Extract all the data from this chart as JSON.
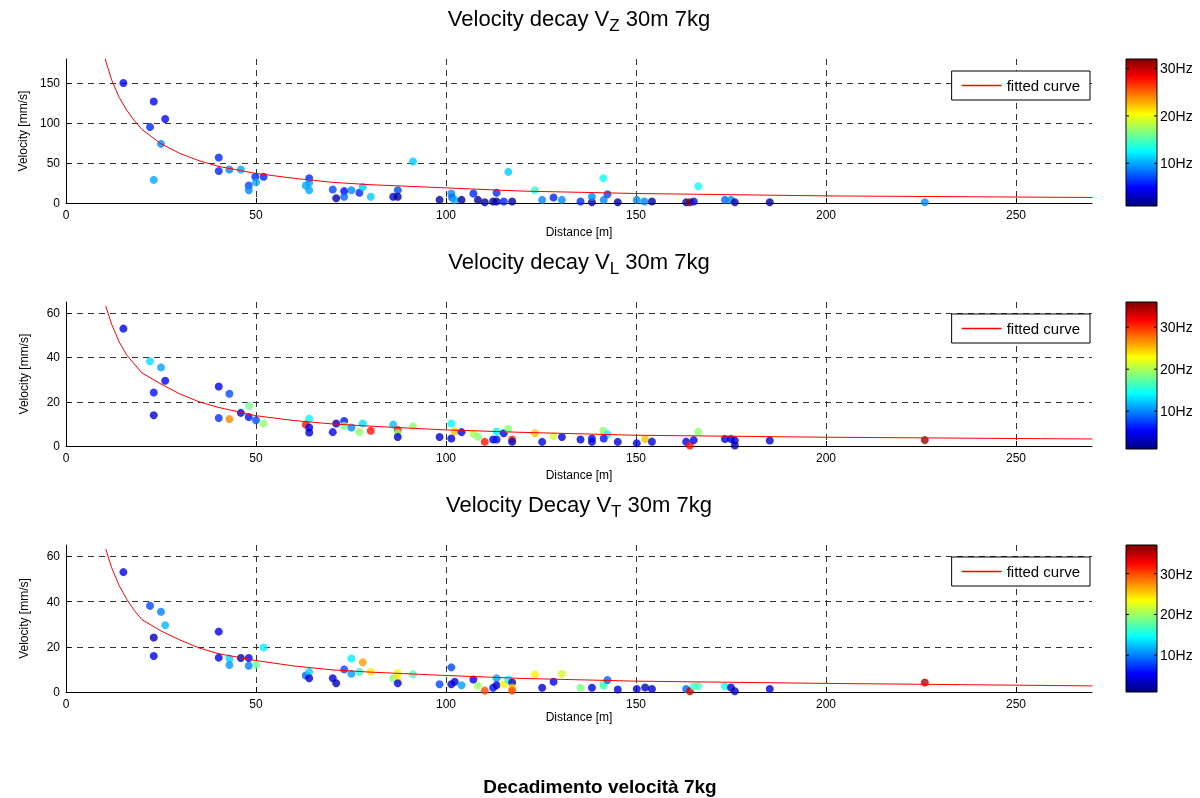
{
  "chart_data": [
    {
      "type": "scatter",
      "title": "Velocity decay V$_{Z}$ 30m 7kg",
      "xlabel": "Distance [m]",
      "ylabel": "Velocity [mm/s]",
      "xlim": [
        0,
        270
      ],
      "xticks": [
        0,
        50,
        100,
        150,
        200,
        250
      ],
      "ylim": [
        0,
        180
      ],
      "yticks": [
        0,
        50,
        100,
        150
      ],
      "grid": true,
      "legend": "top right",
      "clim": [
        1,
        32
      ],
      "cticks": [
        {
          "value": 10,
          "label": "10Hz"
        },
        {
          "value": 20,
          "label": "20Hz"
        },
        {
          "value": 30,
          "label": "30Hz"
        }
      ],
      "series": [
        {
          "type": "scatter",
          "marker": "circle",
          "x": [
            15.1,
            23.1,
            22.1,
            26.1,
            25,
            23.1,
            40.2,
            40.2,
            43,
            46,
            49.8,
            52,
            48.1,
            48.1,
            50,
            64,
            63.1,
            64,
            64,
            70.2,
            71.1,
            73.2,
            73.2,
            75.1,
            77.2,
            78.1,
            80.2,
            86.1,
            87.3,
            87.3,
            91.3,
            98.3,
            101.4,
            101.6,
            102.3,
            104.1,
            107.2,
            108.4,
            110.2,
            112.4,
            113.3,
            113.3,
            115.2,
            116.4,
            117.4,
            123.4,
            125.3,
            128.3,
            130.5,
            135.4,
            138.4,
            138.4,
            141.5,
            141.4,
            142.5,
            145.2,
            150.2,
            152.2,
            154.2,
            163.2,
            164.2,
            165.2,
            166.4,
            173.4,
            175,
            176,
            185.2,
            226
          ],
          "values": [
            150,
            127,
            95,
            105,
            74,
            29,
            57,
            40,
            42,
            42,
            33,
            33,
            22,
            16,
            26,
            31,
            22,
            25,
            16,
            17,
            6,
            15,
            8,
            16,
            13,
            20,
            8,
            8,
            16,
            8,
            52,
            4,
            12,
            7,
            4,
            4,
            12,
            4,
            1,
            2,
            13,
            2,
            2,
            39,
            2,
            16,
            4,
            7,
            4,
            2,
            1,
            8,
            4,
            31,
            11,
            1,
            4,
            2,
            2,
            1,
            1,
            2,
            21,
            4,
            4,
            1,
            1,
            1
          ],
          "colors": [
            "#0004ff",
            "#0004ff",
            "#0025ff",
            "#0004ff",
            "#0088ff",
            "#00a8ff",
            "#0025ff",
            "#0025ff",
            "#0088ff",
            "#00a8ff",
            "#0025ff",
            "#0025ff",
            "#0046ff",
            "#0088ff",
            "#00a8ff",
            "#0025ff",
            "#00a8ff",
            "#00a8ff",
            "#00a8ff",
            "#0046ff",
            "#0000a0",
            "#0004ff",
            "#0067ff",
            "#0088ff",
            "#0025ff",
            "#00c9ff",
            "#00c9ff",
            "#0000e2",
            "#0046ff",
            "#0000a0",
            "#00c9ff",
            "#0000a0",
            "#0088ff",
            "#0067ff",
            "#00a8ff",
            "#0000a0",
            "#0025ff",
            "#0000a0",
            "#0000a0",
            "#0000a0",
            "#0025ff",
            "#0000a0",
            "#0025ff",
            "#00c9ff",
            "#0000a0",
            "#2dffd2",
            "#0088ff",
            "#0025ff",
            "#0088ff",
            "#0025ff",
            "#0000a0",
            "#0088ff",
            "#0088ff",
            "#0cfff3",
            "#0046ff",
            "#0000a0",
            "#0088ff",
            "#0088ff",
            "#0000a0",
            "#0000a0",
            "#800000",
            "#0000e2",
            "#0cfff3",
            "#0067ff",
            "#0088ff",
            "#0000a0",
            "#0000a0",
            "#0088ff"
          ]
        },
        {
          "type": "line",
          "name": "fitted curve",
          "color": "#ff0000",
          "line_style": "solid",
          "marker": "none",
          "x": [
            10.3,
            12,
            14,
            16,
            18,
            20,
            25,
            30,
            35,
            40,
            50,
            60,
            70,
            80,
            100,
            120,
            150,
            200,
            270
          ],
          "values": [
            180,
            154,
            132,
            116,
            103,
            92,
            74,
            62,
            53,
            46,
            37,
            31,
            26,
            23,
            19,
            15,
            12,
            9,
            7
          ]
        }
      ]
    },
    {
      "type": "scatter",
      "title": "Velocity decay V$_{L}$ 30m 7kg",
      "xlabel": "Distance [m]",
      "ylabel": "Velocity [mm/s]",
      "xlim": [
        0,
        270
      ],
      "xticks": [
        0,
        50,
        100,
        150,
        200,
        250
      ],
      "ylim": [
        0,
        65
      ],
      "yticks": [
        0,
        20,
        40,
        60
      ],
      "grid": true,
      "legend": "top right",
      "clim": [
        1,
        36
      ],
      "cticks": [
        {
          "value": 10,
          "label": "10Hz"
        },
        {
          "value": 20,
          "label": "20Hz"
        },
        {
          "value": 30,
          "label": "30Hz"
        }
      ],
      "series": [
        {
          "type": "scatter",
          "marker": "circle",
          "x": [
            15.1,
            22.1,
            25,
            26.1,
            23.1,
            23.1,
            40.2,
            43,
            40.2,
            43,
            48.2,
            46,
            48.1,
            50,
            52,
            64,
            63.1,
            64,
            64,
            70.2,
            71.1,
            73.2,
            73.2,
            75.1,
            77.2,
            78.1,
            80.2,
            86.1,
            87.3,
            87.3,
            87.3,
            91.3,
            98.3,
            101.4,
            102.3,
            101.4,
            104.1,
            107.2,
            108.4,
            110.2,
            112.4,
            113.3,
            113.3,
            115.2,
            116.4,
            117.4,
            117.4,
            123.4,
            125.3,
            128.3,
            130.5,
            135.4,
            138.4,
            138.4,
            141.4,
            142.5,
            141.5,
            145.2,
            150.2,
            152.4,
            154.2,
            163.2,
            164.2,
            165.2,
            166.4,
            173.4,
            175,
            176,
            176,
            185.2,
            226
          ],
          "values": [
            53,
            38.3,
            35.5,
            29.5,
            24.2,
            13.9,
            26.9,
            23.6,
            12.7,
            12.2,
            18.1,
            15,
            13.1,
            11.7,
            10.2,
            12.3,
            9.7,
            8.4,
            6.1,
            6.3,
            10.2,
            11.3,
            9.2,
            8.4,
            6.3,
            10.2,
            6.9,
            9.7,
            7.3,
            5.8,
            4.1,
            8.9,
            4.1,
            10.2,
            6.6,
            3.4,
            6.3,
            5.5,
            4.2,
            1.9,
            3,
            3,
            6.6,
            5.8,
            7.7,
            3,
            1.9,
            5.8,
            1.9,
            4.5,
            4.1,
            3,
            3.4,
            1.9,
            6.9,
            5.3,
            3.4,
            1.9,
            1.3,
            3.2,
            2,
            2,
            0.3,
            2.7,
            6.5,
            3.2,
            3.2,
            2.5,
            0.3,
            2.5,
            2.7
          ],
          "colors": [
            "#0000f4",
            "#00deff",
            "#00a4ff",
            "#0000f4",
            "#0012ff",
            "#0000d7",
            "#0000f4",
            "#004cff",
            "#002fff",
            "#ff8700",
            "#71ff8e",
            "#0000d7",
            "#0012ff",
            "#004cff",
            "#8eff71",
            "#00fbff",
            "#ff1200",
            "#0000f4",
            "#0000d7",
            "#0000f4",
            "#0000ba",
            "#0012ff",
            "#71ff8e",
            "#0087ff",
            "#8eff71",
            "#00deff",
            "#ff1200",
            "#00c1ff",
            "#ff1200",
            "#8eff71",
            "#0000d7",
            "#8eff71",
            "#0000d7",
            "#00fbff",
            "#ffc100",
            "#0000d7",
            "#0000f4",
            "#abff54",
            "#8eff71",
            "#ff1200",
            "#0000d7",
            "#0012ff",
            "#00fbff",
            "#0000f4",
            "#8eff71",
            "#ff1200",
            "#0000d7",
            "#ffc100",
            "#0000d7",
            "#c8ff37",
            "#0000f4",
            "#0000d7",
            "#0000f4",
            "#0000d7",
            "#8eff71",
            "#00fbff",
            "#0012ff",
            "#0000d7",
            "#0000d7",
            "#ffc100",
            "#0000d7",
            "#0000d7",
            "#ff1200",
            "#0000f4",
            "#8eff71",
            "#0000d7",
            "#0000d7",
            "#0000d7",
            "#0000ba",
            "#0000d7",
            "#9d0000"
          ]
        },
        {
          "type": "line",
          "name": "fitted curve",
          "color": "#ff0000",
          "line_style": "solid",
          "marker": "none",
          "x": [
            10.5,
            12,
            14,
            16,
            18,
            20,
            25,
            30,
            35,
            40,
            50,
            60,
            70,
            80,
            100,
            120,
            150,
            200,
            270
          ],
          "values": [
            63,
            55,
            47,
            41,
            37,
            33,
            28,
            23.5,
            20,
            17.5,
            13.7,
            11.5,
            10,
            9,
            7.3,
            6.2,
            4.9,
            4,
            3.2
          ]
        }
      ]
    },
    {
      "type": "scatter",
      "title": "Velocity Decay V$_{T}$ 30m 7kg",
      "xlabel": "Distance [m]",
      "ylabel": "Velocity [mm/s]",
      "xlim": [
        0,
        270
      ],
      "xticks": [
        0,
        50,
        100,
        150,
        200,
        250
      ],
      "ylim": [
        0,
        65
      ],
      "yticks": [
        0,
        20,
        40,
        60
      ],
      "grid": true,
      "legend": "top right",
      "clim": [
        1,
        37
      ],
      "cticks": [
        {
          "value": 10,
          "label": "10Hz"
        },
        {
          "value": 20,
          "label": "20Hz"
        },
        {
          "value": 30,
          "label": "30Hz"
        }
      ],
      "annotations": [
        "Decadimento velocità 7kg"
      ],
      "series": [
        {
          "type": "scatter",
          "marker": "circle",
          "x": [
            15.1,
            22.1,
            25,
            26.1,
            23.1,
            23.1,
            40.2,
            40.2,
            43,
            43,
            46,
            48.1,
            48.1,
            50,
            52,
            63.1,
            64,
            64,
            70.2,
            71.1,
            73.2,
            75.1,
            75.1,
            78.1,
            77.2,
            80.2,
            86.1,
            87.3,
            87.3,
            87.3,
            91.3,
            98.3,
            101.4,
            101.4,
            102.3,
            104.1,
            107.2,
            108.4,
            110.2,
            112.4,
            113.3,
            113.3,
            115.2,
            116.4,
            117.4,
            117.4,
            117.4,
            123.4,
            125.3,
            128.3,
            130.5,
            135.4,
            138.4,
            141.5,
            141.5,
            142.5,
            145.2,
            150.2,
            152.4,
            154.2,
            163.2,
            164.2,
            165.2,
            166.4,
            173.4,
            175,
            176,
            185.2,
            226
          ],
          "values": [
            53,
            38.1,
            35.5,
            29.5,
            24.1,
            15.9,
            26.7,
            15.2,
            14.8,
            11.9,
            15,
            15,
            11.6,
            12,
            19.7,
            7.3,
            8.9,
            6.1,
            6.1,
            3.9,
            10,
            14.8,
            8.1,
            13.1,
            8.9,
            8.9,
            6.1,
            8.4,
            5.5,
            3.9,
            7.8,
            3.4,
            10.9,
            3.4,
            4.5,
            3,
            5.5,
            2.7,
            0.6,
            1.9,
            6.1,
            3,
            3.4,
            5.5,
            4.2,
            1.9,
            0.6,
            7.7,
            1.9,
            4.5,
            8.1,
            1.9,
            1.9,
            3.8,
            2.7,
            5.3,
            1.1,
            1.3,
            2,
            1.3,
            1.3,
            0.3,
            2.5,
            2.5,
            2.5,
            2,
            0.3,
            1.3,
            4.2
          ],
          "colors": [
            "#0000f1",
            "#0047ff",
            "#0080ff",
            "#00b8ff",
            "#0000b8",
            "#0000f1",
            "#0000f1",
            "#0000f1",
            "#00d4ff",
            "#009cff",
            "#0000b8",
            "#0000f1",
            "#0080ff",
            "#63ff9c",
            "#00f1ff",
            "#0063ff",
            "#00d4ff",
            "#0000d4",
            "#0000d4",
            "#0000b8",
            "#0047ff",
            "#00f1ff",
            "#009cff",
            "#ff9c00",
            "#2bffd4",
            "#fff100",
            "#80ff80",
            "#fff100",
            "#f1ff0e",
            "#0000f1",
            "#47ffb8",
            "#0047ff",
            "#0047ff",
            "#0000d4",
            "#0000d4",
            "#009cff",
            "#0000f1",
            "#9cff63",
            "#ff4700",
            "#000eff",
            "#009cff",
            "#0000d4",
            "#fff100",
            "#0efff1",
            "#0000b8",
            "#ffd400",
            "#ff4700",
            "#fff100",
            "#0000d4",
            "#0000f1",
            "#d4ff2b",
            "#80ff80",
            "#0000f1",
            "#63ff9c",
            "#47ffb8",
            "#0063ff",
            "#0000d4",
            "#0000d4",
            "#0000d4",
            "#0000d4",
            "#0063ff",
            "#d40000",
            "#47ffb8",
            "#47ffb8",
            "#0efff1",
            "#0000d4",
            "#0000b8",
            "#0000d4",
            "#b80000"
          ]
        },
        {
          "type": "line",
          "name": "fitted curve",
          "color": "#ff0000",
          "line_style": "solid",
          "marker": "none",
          "x": [
            10.5,
            12,
            14,
            16,
            18,
            20,
            25,
            30,
            35,
            40,
            50,
            60,
            70,
            80,
            100,
            120,
            150,
            200,
            270
          ],
          "values": [
            63,
            55,
            47,
            41,
            36,
            32,
            27,
            23,
            19.5,
            17,
            13.9,
            11.5,
            9.8,
            8.8,
            7.3,
            6,
            4.8,
            3.8,
            2.7
          ]
        }
      ]
    }
  ]
}
